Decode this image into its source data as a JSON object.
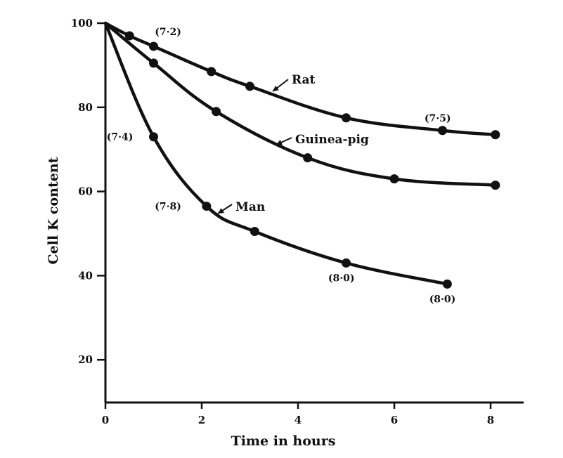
{
  "chart_data": {
    "type": "line",
    "title": "",
    "xlabel": "Time in hours",
    "ylabel": "Cell K content",
    "xlim": [
      0,
      8.4
    ],
    "ylim": [
      10,
      100
    ],
    "xticks": [
      0,
      2,
      4,
      6,
      8
    ],
    "xtick_labels": [
      "0",
      "2",
      "4",
      "6",
      "8"
    ],
    "yticks": [
      20,
      40,
      60,
      80,
      100
    ],
    "ytick_labels": [
      "20",
      "40",
      "60",
      "80",
      "100"
    ],
    "grid": false,
    "legend": "none",
    "line_color": "#111111",
    "series": [
      {
        "name": "Rat",
        "x": [
          0,
          0.5,
          1,
          2.2,
          3,
          5,
          7,
          8.1
        ],
        "y": [
          100,
          97,
          94.5,
          88.5,
          85,
          77.5,
          74.5,
          73.5
        ]
      },
      {
        "name": "Guinea-pig",
        "x": [
          0,
          1,
          2.3,
          4.2,
          6,
          8.1
        ],
        "y": [
          100,
          90.5,
          79,
          68,
          63,
          61.5
        ]
      },
      {
        "name": "Man",
        "x": [
          0,
          1,
          2.1,
          3.1,
          5,
          7.1
        ],
        "y": [
          100,
          73,
          56.5,
          50.5,
          43,
          38
        ]
      }
    ],
    "annotations": [
      {
        "text": "(7·2)",
        "x": 1.3,
        "y": 98
      },
      {
        "text": "(7·5)",
        "x": 6.9,
        "y": 77.5
      },
      {
        "text": "(7·4)",
        "x": 0.3,
        "y": 73
      },
      {
        "text": "(7·8)",
        "x": 1.3,
        "y": 56.5
      },
      {
        "text": "(8·0)",
        "x": 4.9,
        "y": 39.5
      },
      {
        "text": "(8·0)",
        "x": 7,
        "y": 34.5
      }
    ]
  }
}
